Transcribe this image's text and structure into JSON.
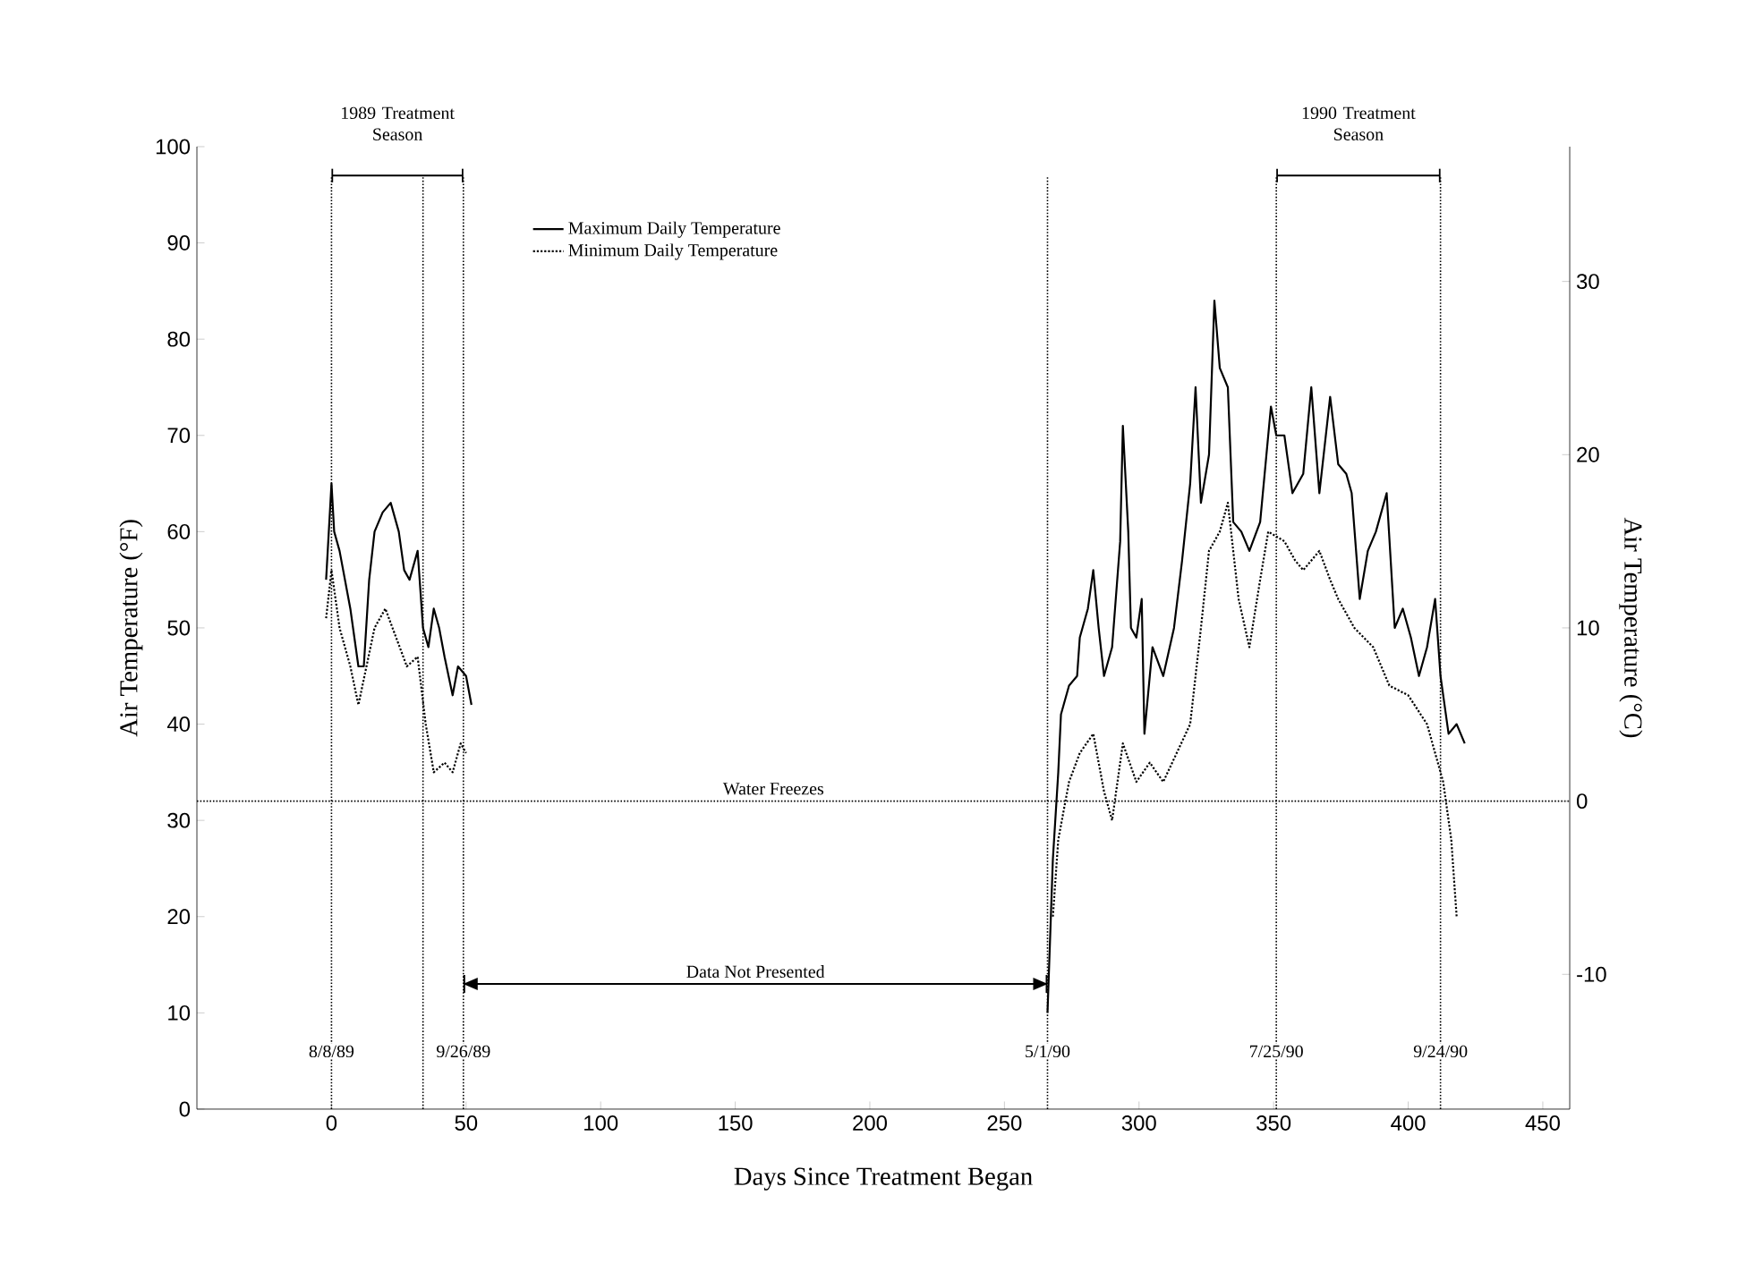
{
  "chart_data": {
    "type": "line",
    "xlabel": "Days Since Treatment Began",
    "ylabel": "Air Temperature (°F)",
    "y2label": "Air Temperature (°C)",
    "xlim": [
      -50,
      460
    ],
    "xticks": [
      0,
      50,
      100,
      150,
      200,
      250,
      300,
      350,
      400,
      450
    ],
    "ylim": [
      0,
      100
    ],
    "yticks": [
      0,
      10,
      20,
      30,
      40,
      50,
      60,
      70,
      80,
      90,
      100
    ],
    "y2lim": [
      -17.78,
      37.78
    ],
    "y2ticks": [
      -10,
      0,
      10,
      20,
      30
    ],
    "legend": "top left",
    "grid": false,
    "marker": "none",
    "series": [
      {
        "name": "Maximum Daily Temperature",
        "color": "#000000",
        "line_style": "solid",
        "x": [
          -2,
          0,
          1,
          3,
          5,
          7,
          9,
          10,
          12,
          14,
          16,
          19,
          22,
          25,
          27,
          29,
          32,
          34,
          36,
          38,
          40,
          42,
          45,
          47,
          50,
          52,
          150,
          266,
          268,
          270,
          271,
          274,
          277,
          278,
          281,
          283,
          285,
          287,
          290,
          293,
          294,
          296,
          297,
          299,
          301,
          302,
          305,
          309,
          313,
          316,
          319,
          321,
          323,
          326,
          328,
          330,
          333,
          335,
          338,
          341,
          345,
          349,
          351,
          354,
          357,
          361,
          364,
          367,
          371,
          374,
          377,
          379,
          382,
          385,
          388,
          392,
          395,
          398,
          401,
          404,
          407,
          410,
          412,
          415,
          418,
          421
        ],
        "values": [
          55,
          65,
          60,
          58,
          55,
          52,
          48,
          46,
          46,
          55,
          60,
          62,
          63,
          60,
          56,
          55,
          58,
          50,
          48,
          52,
          50,
          47,
          43,
          46,
          45,
          42,
          null,
          10,
          26,
          35,
          41,
          44,
          45,
          49,
          52,
          56,
          50,
          45,
          48,
          59,
          71,
          60,
          50,
          49,
          53,
          39,
          48,
          45,
          50,
          57,
          65,
          75,
          63,
          68,
          84,
          77,
          75,
          61,
          60,
          58,
          61,
          73,
          70,
          70,
          64,
          66,
          75,
          64,
          74,
          67,
          66,
          64,
          53,
          58,
          60,
          64,
          50,
          52,
          49,
          45,
          48,
          53,
          45,
          39,
          40,
          38
        ]
      },
      {
        "name": "Minimum Daily Temperature",
        "color": "#000000",
        "line_style": "dotted",
        "x": [
          -2,
          0,
          3,
          5,
          7,
          10,
          13,
          16,
          20,
          24,
          28,
          32,
          35,
          38,
          42,
          45,
          48,
          50,
          150,
          268,
          270,
          274,
          278,
          283,
          287,
          290,
          294,
          299,
          304,
          309,
          314,
          319,
          323,
          326,
          330,
          333,
          337,
          341,
          345,
          348,
          354,
          358,
          361,
          367,
          371,
          374,
          380,
          387,
          393,
          400,
          407,
          411,
          413,
          416,
          418
        ],
        "values": [
          51,
          56,
          50,
          48,
          46,
          42,
          46,
          50,
          52,
          49,
          46,
          47,
          40,
          35,
          36,
          35,
          38,
          37,
          null,
          20,
          28,
          34,
          37,
          39,
          33,
          30,
          38,
          34,
          36,
          34,
          37,
          40,
          50,
          58,
          60,
          63,
          53,
          48,
          55,
          60,
          59,
          57,
          56,
          58,
          55,
          53,
          50,
          48,
          44,
          43,
          40,
          36,
          34,
          28,
          20
        ]
      }
    ],
    "ref_lines": [
      {
        "axis": "y",
        "value": 32,
        "label": "Water Freezes",
        "line_style": "dotted"
      },
      {
        "axis": "x",
        "value": 0,
        "line_style": "dotted"
      },
      {
        "axis": "x",
        "value": 34,
        "line_style": "dotted"
      },
      {
        "axis": "x",
        "value": 49,
        "line_style": "dotted"
      },
      {
        "axis": "x",
        "value": 266,
        "line_style": "dotted"
      },
      {
        "axis": "x",
        "value": 351,
        "line_style": "dotted"
      },
      {
        "axis": "x",
        "value": 412,
        "line_style": "dotted"
      }
    ],
    "annotations": [
      {
        "text": "8/8/89",
        "x": 0,
        "y": 6
      },
      {
        "text": "9/26/89",
        "x": 49,
        "y": 6
      },
      {
        "text": "5/1/90",
        "x": 266,
        "y": 6
      },
      {
        "text": "7/25/90",
        "x": 351,
        "y": 6
      },
      {
        "text": "9/24/90",
        "x": 412,
        "y": 6
      },
      "1989 Treatment Season",
      "Data Not Presented",
      "1990 Treatment Season"
    ]
  }
}
